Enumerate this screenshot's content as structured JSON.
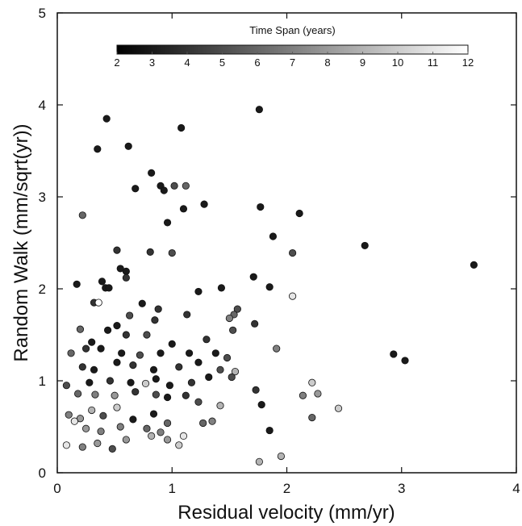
{
  "chart_data": {
    "type": "scatter",
    "xlabel": "Residual velocity (mm/yr)",
    "ylabel": "Random Walk (mm/sqrt(yr))",
    "xlim": [
      0,
      4
    ],
    "ylim": [
      0,
      5
    ],
    "x_ticks": [
      "0",
      "1",
      "2",
      "3",
      "4"
    ],
    "y_ticks": [
      "0",
      "1",
      "2",
      "3",
      "4",
      "5"
    ],
    "grid": false,
    "colorbar": {
      "title": "Time Span (years)",
      "min": 2,
      "max": 12,
      "ticks": [
        "2",
        "3",
        "4",
        "5",
        "6",
        "7",
        "8",
        "9",
        "10",
        "11",
        "12"
      ],
      "low_color": "#000000",
      "high_color": "#ffffff",
      "placement": "top-center"
    },
    "points": [
      [
        0.43,
        3.85,
        3
      ],
      [
        0.35,
        3.52,
        3
      ],
      [
        0.62,
        3.55,
        3
      ],
      [
        1.08,
        3.75,
        3
      ],
      [
        1.76,
        3.95,
        3
      ],
      [
        0.82,
        3.26,
        3
      ],
      [
        0.68,
        3.09,
        3
      ],
      [
        0.9,
        3.12,
        3
      ],
      [
        0.93,
        3.07,
        3
      ],
      [
        1.02,
        3.12,
        5
      ],
      [
        1.12,
        3.12,
        6
      ],
      [
        1.1,
        2.87,
        3
      ],
      [
        1.28,
        2.92,
        3
      ],
      [
        0.22,
        2.8,
        6
      ],
      [
        0.96,
        2.72,
        3
      ],
      [
        1.77,
        2.89,
        3
      ],
      [
        2.11,
        2.82,
        3
      ],
      [
        0.52,
        2.42,
        4
      ],
      [
        0.81,
        2.4,
        4
      ],
      [
        1.0,
        2.39,
        5
      ],
      [
        1.88,
        2.57,
        3
      ],
      [
        2.05,
        2.39,
        5
      ],
      [
        2.68,
        2.47,
        3
      ],
      [
        3.63,
        2.26,
        3
      ],
      [
        0.55,
        2.22,
        3
      ],
      [
        0.6,
        2.19,
        3
      ],
      [
        0.6,
        2.12,
        4
      ],
      [
        0.17,
        2.05,
        3
      ],
      [
        0.39,
        2.08,
        3
      ],
      [
        0.42,
        2.01,
        3
      ],
      [
        0.45,
        2.01,
        3
      ],
      [
        1.23,
        1.97,
        3
      ],
      [
        1.43,
        2.01,
        3
      ],
      [
        1.71,
        2.13,
        3
      ],
      [
        1.85,
        2.02,
        3
      ],
      [
        2.05,
        1.92,
        11
      ],
      [
        0.32,
        1.85,
        4
      ],
      [
        0.36,
        1.85,
        12
      ],
      [
        0.74,
        1.84,
        3
      ],
      [
        0.88,
        1.78,
        4
      ],
      [
        1.57,
        1.78,
        5
      ],
      [
        1.54,
        1.72,
        6
      ],
      [
        1.5,
        1.68,
        7
      ],
      [
        0.63,
        1.71,
        5
      ],
      [
        0.85,
        1.66,
        4
      ],
      [
        1.13,
        1.72,
        4
      ],
      [
        0.2,
        1.56,
        6
      ],
      [
        0.44,
        1.55,
        3
      ],
      [
        0.52,
        1.6,
        3
      ],
      [
        1.53,
        1.55,
        5
      ],
      [
        1.72,
        1.62,
        4
      ],
      [
        0.3,
        1.42,
        3
      ],
      [
        0.6,
        1.5,
        4
      ],
      [
        0.78,
        1.5,
        5
      ],
      [
        1.0,
        1.4,
        3
      ],
      [
        0.12,
        1.3,
        6
      ],
      [
        0.25,
        1.35,
        4
      ],
      [
        0.38,
        1.35,
        3
      ],
      [
        0.56,
        1.3,
        3
      ],
      [
        0.72,
        1.28,
        5
      ],
      [
        0.9,
        1.3,
        3
      ],
      [
        1.15,
        1.3,
        3
      ],
      [
        1.3,
        1.45,
        4
      ],
      [
        1.38,
        1.3,
        3
      ],
      [
        1.48,
        1.25,
        5
      ],
      [
        1.91,
        1.35,
        7
      ],
      [
        2.93,
        1.29,
        3
      ],
      [
        3.03,
        1.22,
        3
      ],
      [
        0.22,
        1.15,
        4
      ],
      [
        0.32,
        1.12,
        3
      ],
      [
        0.52,
        1.2,
        3
      ],
      [
        0.66,
        1.17,
        4
      ],
      [
        0.84,
        1.12,
        3
      ],
      [
        1.06,
        1.15,
        4
      ],
      [
        1.23,
        1.2,
        3
      ],
      [
        1.42,
        1.12,
        5
      ],
      [
        1.55,
        1.1,
        9
      ],
      [
        0.08,
        0.95,
        5
      ],
      [
        0.28,
        0.98,
        3
      ],
      [
        0.46,
        1.0,
        4
      ],
      [
        0.64,
        0.98,
        3
      ],
      [
        0.77,
        0.97,
        10
      ],
      [
        0.86,
        1.02,
        3
      ],
      [
        0.98,
        0.95,
        3
      ],
      [
        1.17,
        0.98,
        4
      ],
      [
        1.32,
        1.04,
        3
      ],
      [
        1.52,
        1.04,
        5
      ],
      [
        1.73,
        0.9,
        4
      ],
      [
        2.22,
        0.98,
        10
      ],
      [
        0.18,
        0.86,
        6
      ],
      [
        0.33,
        0.85,
        7
      ],
      [
        0.5,
        0.84,
        8
      ],
      [
        0.68,
        0.88,
        4
      ],
      [
        0.86,
        0.85,
        5
      ],
      [
        0.96,
        0.82,
        3
      ],
      [
        1.12,
        0.84,
        4
      ],
      [
        2.14,
        0.84,
        7
      ],
      [
        2.27,
        0.86,
        8
      ],
      [
        0.1,
        0.63,
        7
      ],
      [
        0.2,
        0.59,
        8
      ],
      [
        0.3,
        0.68,
        9
      ],
      [
        0.4,
        0.62,
        5
      ],
      [
        0.52,
        0.71,
        10
      ],
      [
        0.66,
        0.58,
        3
      ],
      [
        0.84,
        0.64,
        3
      ],
      [
        0.96,
        0.54,
        6
      ],
      [
        1.23,
        0.77,
        5
      ],
      [
        1.42,
        0.73,
        9
      ],
      [
        1.78,
        0.74,
        3
      ],
      [
        2.22,
        0.6,
        6
      ],
      [
        2.45,
        0.7,
        10
      ],
      [
        0.15,
        0.56,
        11
      ],
      [
        0.25,
        0.48,
        8
      ],
      [
        0.38,
        0.45,
        7
      ],
      [
        0.55,
        0.5,
        7
      ],
      [
        0.78,
        0.48,
        6
      ],
      [
        0.9,
        0.44,
        7
      ],
      [
        1.1,
        0.4,
        11
      ],
      [
        1.27,
        0.54,
        6
      ],
      [
        1.35,
        0.56,
        7
      ],
      [
        1.85,
        0.46,
        3
      ],
      [
        0.08,
        0.3,
        11
      ],
      [
        0.22,
        0.28,
        7
      ],
      [
        0.35,
        0.32,
        8
      ],
      [
        0.48,
        0.26,
        5
      ],
      [
        0.6,
        0.36,
        8
      ],
      [
        0.82,
        0.4,
        9
      ],
      [
        0.96,
        0.36,
        8
      ],
      [
        1.06,
        0.3,
        10
      ],
      [
        1.76,
        0.12,
        9
      ],
      [
        1.95,
        0.18,
        9
      ]
    ]
  }
}
